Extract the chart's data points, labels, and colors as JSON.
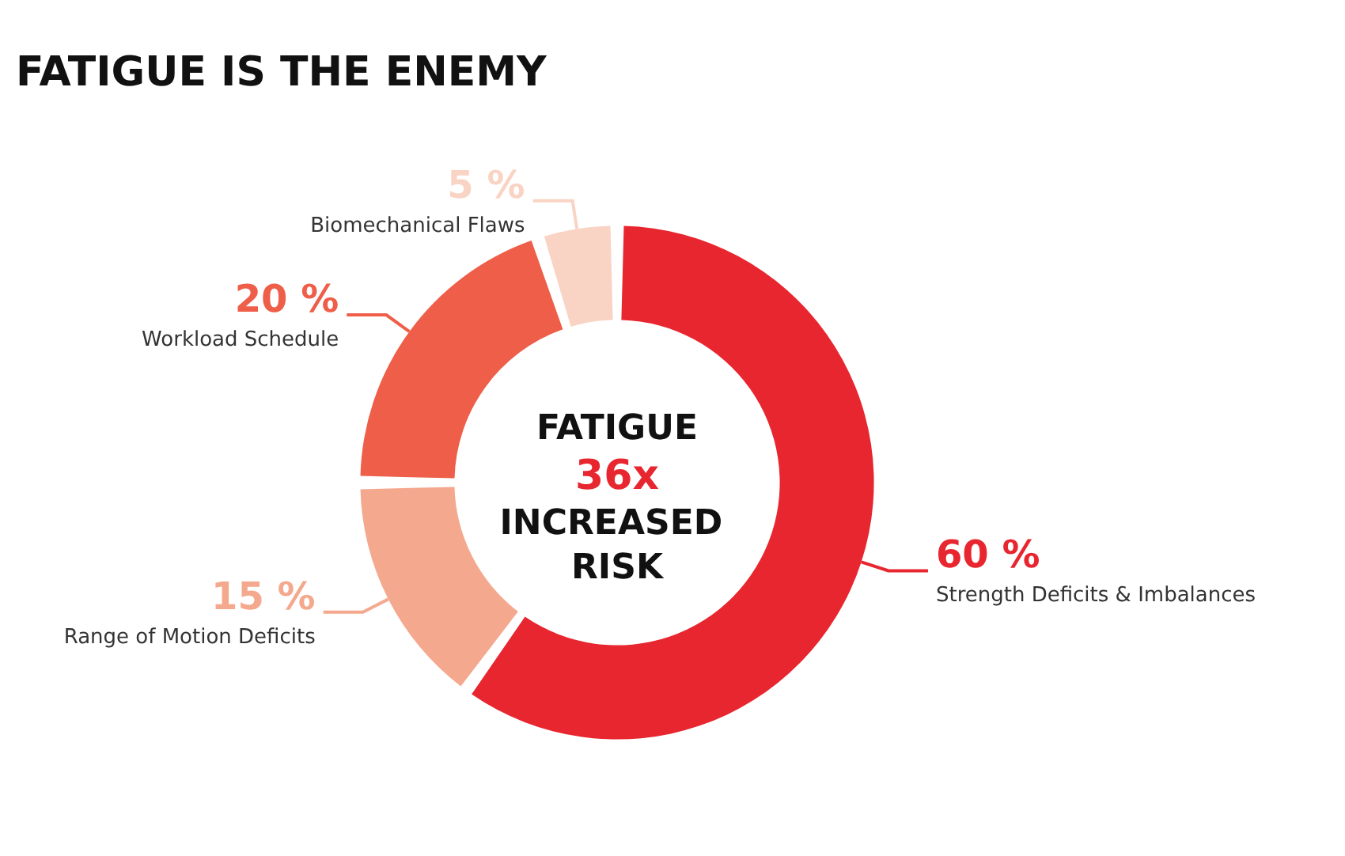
{
  "chart_data": {
    "type": "donut",
    "title": "FATIGUE IS THE ENEMY",
    "categories": [
      "Strength Deficits & Imbalances",
      "Range of Motion Deficits",
      "Workload Schedule",
      "Biomechanical Flaws"
    ],
    "values": [
      60,
      15,
      20,
      5
    ],
    "value_labels": [
      "60 %",
      "15 %",
      "20 %",
      "5 %"
    ],
    "colors": [
      "#e8262f",
      "#f4a98f",
      "#ee5e48",
      "#f9d4c4"
    ],
    "annotations": [
      "FATIGUE",
      "36x",
      "INCREASED RISK"
    ],
    "legend": false
  }
}
